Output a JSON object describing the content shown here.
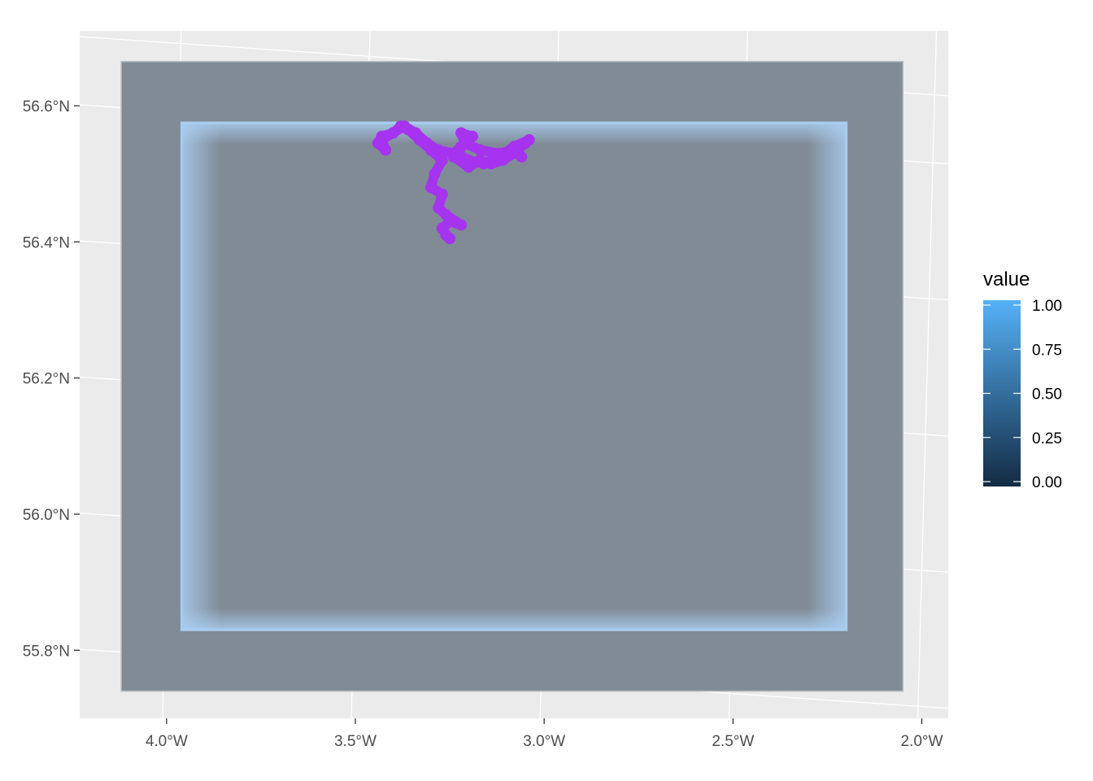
{
  "chart_data": {
    "type": "map",
    "title": "",
    "xlabel": "",
    "ylabel": "",
    "x_ticks": [
      {
        "value": -4.0,
        "label": "4.0°W"
      },
      {
        "value": -3.5,
        "label": "3.5°W"
      },
      {
        "value": -3.0,
        "label": "3.0°W"
      },
      {
        "value": -2.5,
        "label": "2.5°W"
      },
      {
        "value": -2.0,
        "label": "2.0°W"
      }
    ],
    "y_ticks": [
      {
        "value": 55.8,
        "label": "55.8°N"
      },
      {
        "value": 56.0,
        "label": "56.0°N"
      },
      {
        "value": 56.2,
        "label": "56.2°N"
      },
      {
        "value": 56.4,
        "label": "56.4°N"
      },
      {
        "value": 56.6,
        "label": "56.6°N"
      }
    ],
    "xlim": [
      -4.23,
      -1.93
    ],
    "ylim": [
      55.7,
      56.71
    ],
    "grid": true,
    "outer_extent": {
      "xmin": -4.12,
      "xmax": -2.05,
      "ymin": 55.74,
      "ymax": 56.665
    },
    "inner_extent": {
      "xmin": -3.96,
      "xmax": -2.2,
      "ymin": 55.83,
      "ymax": 56.575
    },
    "raster_fill_color": "#808b96",
    "edge_glow_color": "#a9cdf0",
    "track": {
      "color": "#a633f0",
      "points": [
        [
          -3.25,
          56.405
        ],
        [
          -3.26,
          56.41
        ],
        [
          -3.27,
          56.42
        ],
        [
          -3.25,
          56.43
        ],
        [
          -3.22,
          56.425
        ],
        [
          -3.26,
          56.44
        ],
        [
          -3.28,
          56.45
        ],
        [
          -3.27,
          56.47
        ],
        [
          -3.3,
          56.48
        ],
        [
          -3.29,
          56.5
        ],
        [
          -3.27,
          56.52
        ],
        [
          -3.3,
          56.535
        ],
        [
          -3.33,
          56.55
        ],
        [
          -3.36,
          56.565
        ],
        [
          -3.38,
          56.57
        ],
        [
          -3.4,
          56.56
        ],
        [
          -3.43,
          56.555
        ],
        [
          -3.44,
          56.545
        ],
        [
          -3.42,
          56.535
        ],
        [
          -3.43,
          56.55
        ],
        [
          -3.4,
          56.56
        ],
        [
          -3.37,
          56.57
        ],
        [
          -3.34,
          56.56
        ],
        [
          -3.31,
          56.545
        ],
        [
          -3.28,
          56.535
        ],
        [
          -3.24,
          56.53
        ],
        [
          -3.21,
          56.545
        ],
        [
          -3.22,
          56.56
        ],
        [
          -3.19,
          56.555
        ],
        [
          -3.22,
          56.54
        ],
        [
          -3.24,
          56.525
        ],
        [
          -3.2,
          56.51
        ],
        [
          -3.17,
          56.52
        ],
        [
          -3.14,
          56.515
        ],
        [
          -3.11,
          56.52
        ],
        [
          -3.08,
          56.53
        ],
        [
          -3.05,
          56.545
        ],
        [
          -3.04,
          56.55
        ],
        [
          -3.08,
          56.54
        ],
        [
          -3.12,
          56.525
        ],
        [
          -3.16,
          56.515
        ],
        [
          -3.2,
          56.52
        ],
        [
          -3.23,
          56.53
        ],
        [
          -3.21,
          56.545
        ],
        [
          -3.17,
          56.535
        ],
        [
          -3.12,
          56.53
        ],
        [
          -3.08,
          56.535
        ],
        [
          -3.06,
          56.525
        ]
      ]
    },
    "legend": {
      "title": "value",
      "placement": "right",
      "range": [
        0,
        1
      ],
      "ticks": [
        {
          "value": 1.0,
          "label": "1.00"
        },
        {
          "value": 0.75,
          "label": "0.75"
        },
        {
          "value": 0.5,
          "label": "0.50"
        },
        {
          "value": 0.25,
          "label": "0.25"
        },
        {
          "value": 0.0,
          "label": "0.00"
        }
      ],
      "color_low": "#132b43",
      "color_high": "#56b1f7"
    },
    "panel_background": "#ebebeb",
    "grid_color": "#ffffff"
  }
}
